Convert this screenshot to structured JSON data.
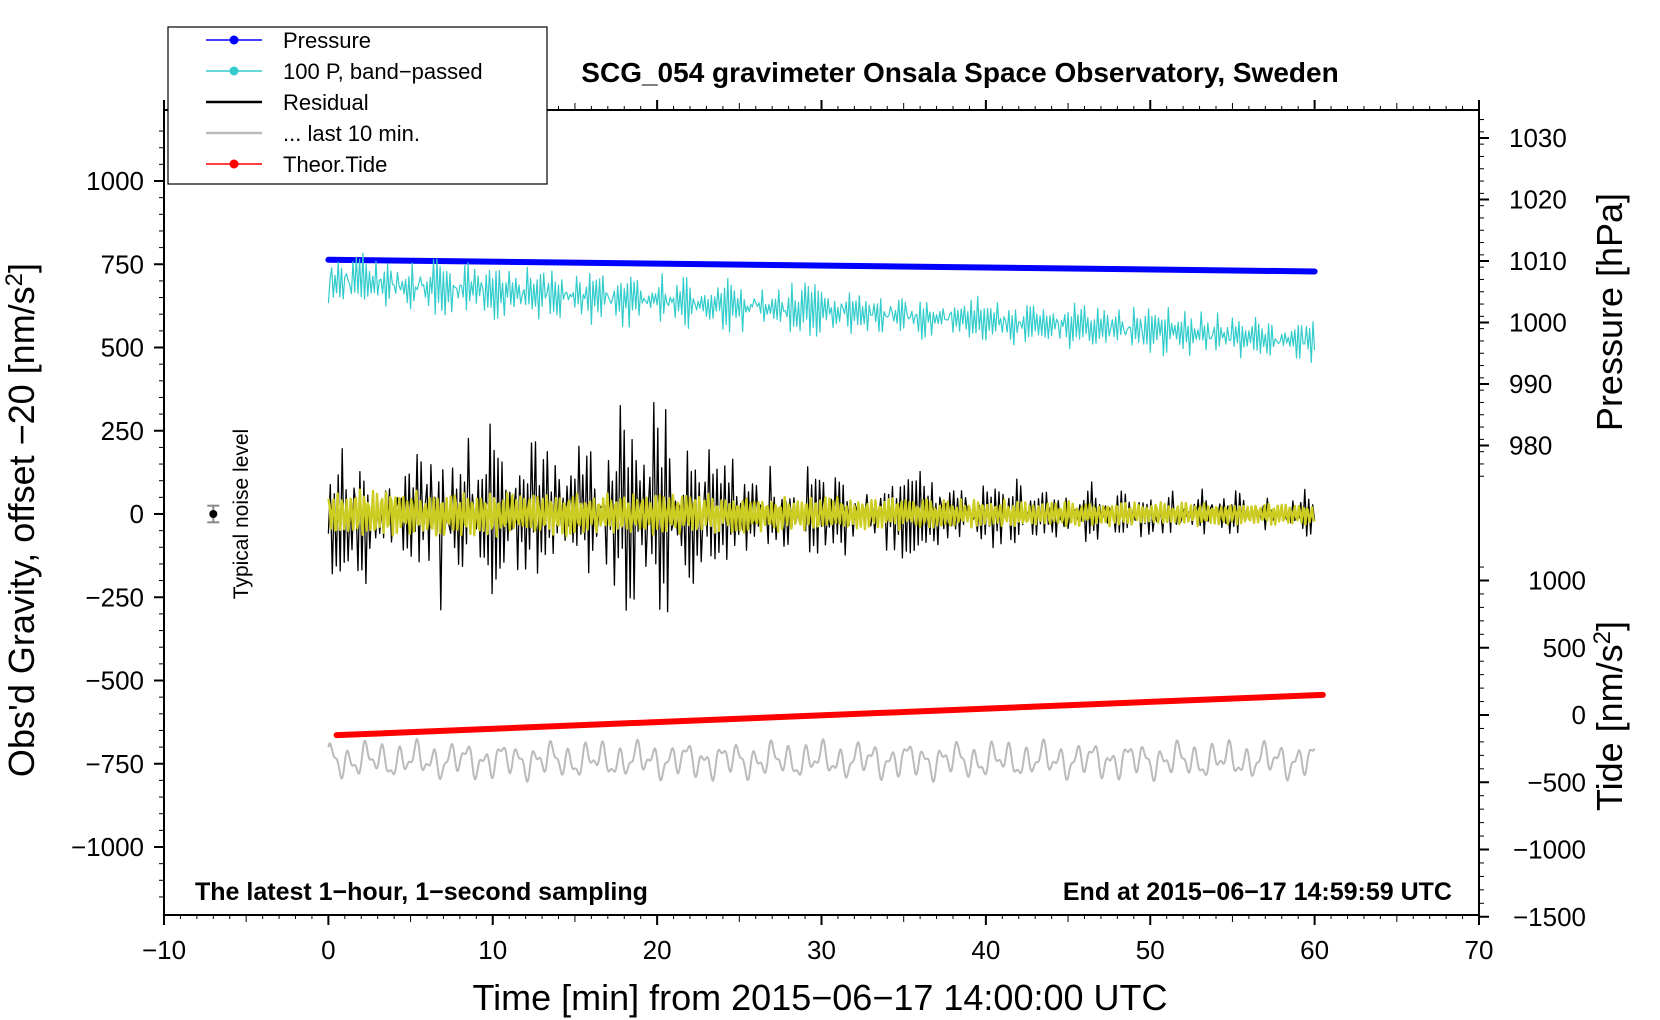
{
  "chart_data": {
    "type": "line",
    "title": "SCG_054 gravimeter Onsala Space Observatory, Sweden",
    "xlabel": "Time [min] from 2015−06−17 14:00:00 UTC",
    "ylabel": "Obs'd Gravity, offset −20 [nm/s",
    "ylabel_sup": "2",
    "ylabel_close": "]",
    "y2label": "Pressure [hPa]",
    "y3label": "Tide [nm/s",
    "y3label_sup": "2",
    "y3label_close": "]",
    "xlim": [
      -10,
      70
    ],
    "ylim": [
      -1200,
      1200
    ],
    "x_ticks": [
      -10,
      0,
      10,
      20,
      30,
      40,
      50,
      60,
      70
    ],
    "x_tick_labels": [
      "−10",
      "0",
      "10",
      "20",
      "30",
      "40",
      "50",
      "60",
      "70"
    ],
    "y_ticks": [
      1000,
      750,
      500,
      250,
      0,
      -250,
      -500,
      -750,
      -1000
    ],
    "y_tick_labels": [
      "1000",
      "750",
      "500",
      "250",
      "0",
      "−250",
      "−500",
      "−750",
      "−1000"
    ],
    "pressure_axis": {
      "range": [
        965,
        1035
      ],
      "ticks": [
        1030,
        1020,
        1010,
        1000,
        990,
        980
      ],
      "tick_labels": [
        "1030",
        "1020",
        "1010",
        "1000",
        "990",
        "980"
      ]
    },
    "tide_axis": {
      "range": [
        -1500,
        1500
      ],
      "ticks": [
        1000,
        500,
        0,
        -500,
        -1000,
        -1500
      ],
      "tick_labels": [
        "1000",
        "500",
        "0",
        "−500",
        "−1000",
        "−1500"
      ]
    },
    "legend": [
      {
        "label": "Pressure",
        "color": "#0000ff",
        "marker": true
      },
      {
        "label": "100 P, band−passed",
        "color": "#33cccc",
        "marker": true
      },
      {
        "label": "Residual",
        "color": "#000000",
        "marker": false
      },
      {
        "label": "... last 10 min.",
        "color": "#bbbbbb",
        "marker": false
      },
      {
        "label": "Theor.Tide",
        "color": "#ff0000",
        "marker": true
      }
    ],
    "annotations": {
      "bottom_left": "The latest 1−hour, 1−second sampling",
      "bottom_right": "End at 2015−06−17 14:59:59 UTC",
      "noise_label": "Typical noise level"
    },
    "noise_marker": {
      "x": -7,
      "y": 0,
      "error": 25
    },
    "series": [
      {
        "name": "Pressure",
        "axis": "pressure",
        "color": "#0000ff",
        "x": [
          0,
          60
        ],
        "values": [
          1010.2,
          1008.3
        ]
      },
      {
        "name": "100 P, band−passed",
        "axis": "gravity",
        "color": "#33cccc",
        "x": [
          0,
          10,
          20,
          30,
          40,
          50,
          60
        ],
        "center": [
          700,
          670,
          640,
          610,
          580,
          550,
          520
        ],
        "amplitude": [
          75,
          75,
          70,
          65,
          60,
          60,
          55
        ]
      },
      {
        "name": "Residual",
        "axis": "gravity",
        "color": "#000000",
        "x": [
          0,
          5,
          10,
          15,
          19,
          25,
          30,
          40,
          50,
          60
        ],
        "center": [
          0,
          0,
          0,
          0,
          0,
          0,
          0,
          0,
          0,
          0
        ],
        "amplitude": [
          150,
          230,
          250,
          160,
          330,
          140,
          130,
          90,
          70,
          60
        ]
      },
      {
        "name": "Residual (yellow overlay)",
        "axis": "gravity",
        "color": "#cccc22",
        "x": [
          0,
          20,
          40,
          60
        ],
        "center": [
          0,
          0,
          0,
          0
        ],
        "amplitude": [
          70,
          60,
          40,
          30
        ]
      },
      {
        "name": "... last 10 min.",
        "axis": "gravity",
        "color": "#bbbbbb",
        "x": [
          0,
          60
        ],
        "center": [
          -740,
          -740
        ],
        "amplitude": [
          60,
          60
        ]
      },
      {
        "name": "Theor.Tide",
        "axis": "tide",
        "color": "#ff0000",
        "x": [
          0.5,
          60.5
        ],
        "values": [
          -150,
          150
        ]
      }
    ]
  }
}
